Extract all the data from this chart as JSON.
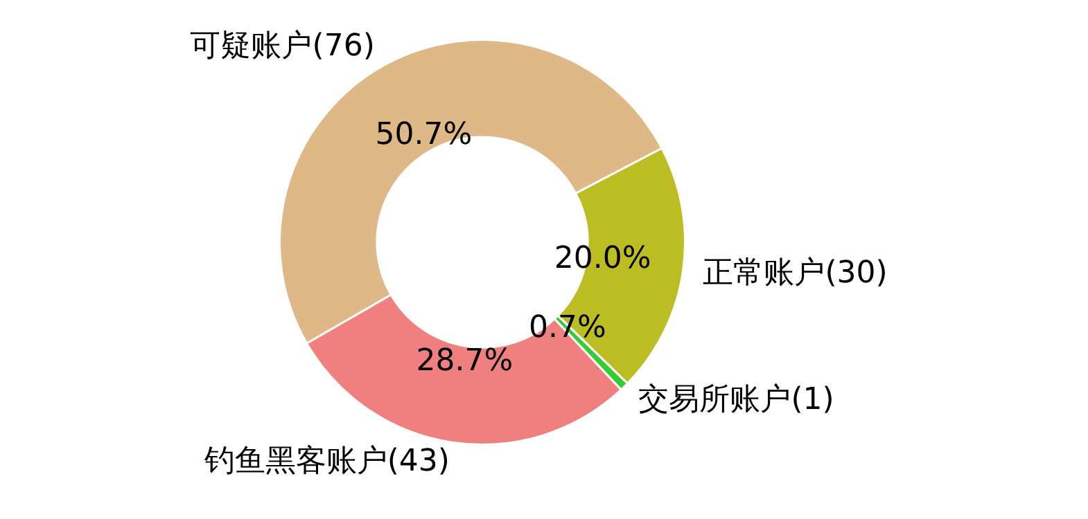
{
  "chart_data": {
    "type": "donut",
    "categories": [
      "可疑账户(76)",
      "正常账户(30)",
      "交易所账户(1)",
      "钓鱼黑客账户(43)"
    ],
    "values": [
      50.7,
      20.0,
      0.7,
      28.7
    ],
    "colors": [
      "#deb887",
      "#bcbd22",
      "#32cd32",
      "#f08080"
    ],
    "value_labels": [
      "50.7%",
      "20.0%",
      "0.7%",
      "28.7%"
    ],
    "legend": false
  }
}
